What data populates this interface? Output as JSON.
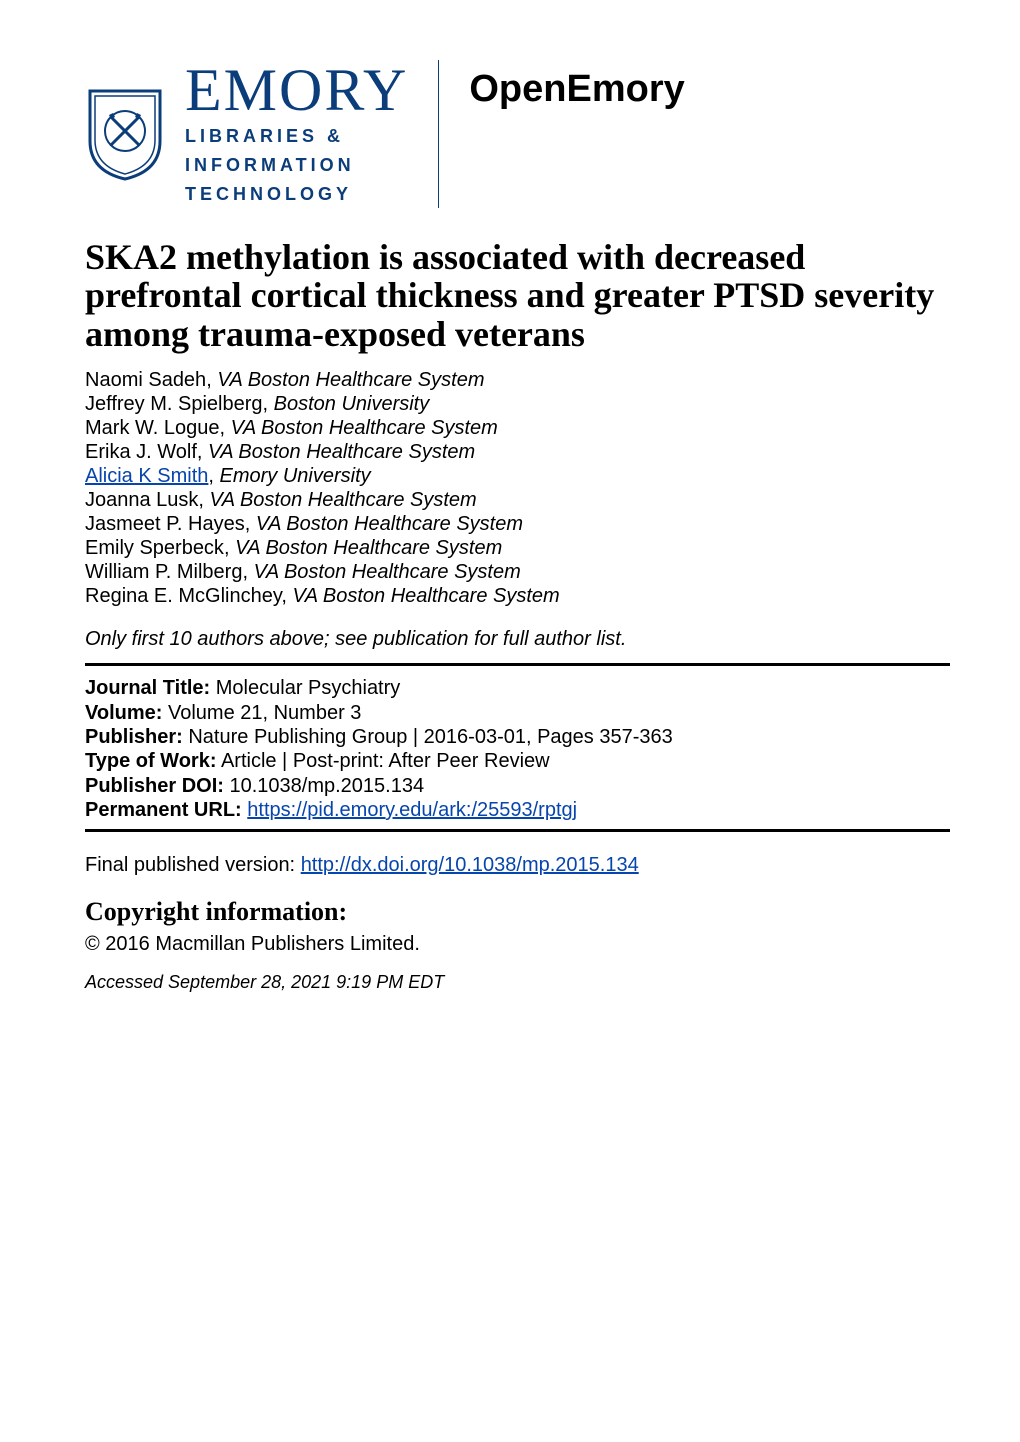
{
  "colors": {
    "brand_blue": "#0b3d7a",
    "link_blue": "#0645ad",
    "text_black": "#000000",
    "background": "#ffffff"
  },
  "typography": {
    "serif_family": "\"Times New Roman\", Times, serif",
    "sans_family": "Arial, Helvetica, sans-serif",
    "article_title_pt": 36,
    "body_pt": 20,
    "emory_title_pt": 60,
    "openemory_pt": 38,
    "copyright_heading_pt": 26
  },
  "header": {
    "emory_title": "EMORY",
    "emory_sub_line1": "LIBRARIES &",
    "emory_sub_line2": "INFORMATION",
    "emory_sub_line3": "TECHNOLOGY",
    "openemory": "OpenEmory"
  },
  "article": {
    "title": "SKA2 methylation is associated with decreased prefrontal cortical thickness and greater PTSD severity among trauma-exposed veterans"
  },
  "authors": [
    {
      "name": "Naomi Sadeh",
      "affiliation": "VA Boston Healthcare System",
      "link": false
    },
    {
      "name": "Jeffrey M. Spielberg",
      "affiliation": "Boston University",
      "link": false
    },
    {
      "name": "Mark W. Logue",
      "affiliation": "VA Boston Healthcare System",
      "link": false
    },
    {
      "name": "Erika J. Wolf",
      "affiliation": "VA Boston Healthcare System",
      "link": false
    },
    {
      "name": "Alicia K Smith",
      "affiliation": "Emory University",
      "link": true
    },
    {
      "name": "Joanna Lusk",
      "affiliation": "VA Boston Healthcare System",
      "link": false
    },
    {
      "name": "Jasmeet P. Hayes",
      "affiliation": "VA Boston Healthcare System",
      "link": false
    },
    {
      "name": "Emily Sperbeck",
      "affiliation": "VA Boston Healthcare System",
      "link": false
    },
    {
      "name": "William P. Milberg",
      "affiliation": "VA Boston Healthcare System",
      "link": false
    },
    {
      "name": "Regina E. McGlinchey",
      "affiliation": "VA Boston Healthcare System",
      "link": false
    }
  ],
  "author_note": "Only first 10 authors above; see publication for full author list.",
  "meta": {
    "journal_label": "Journal Title:",
    "journal_value": " Molecular Psychiatry",
    "volume_label": "Volume:",
    "volume_value": " Volume 21, Number 3",
    "publisher_label": "Publisher:",
    "publisher_value": " Nature Publishing Group | 2016-03-01, Pages 357-363",
    "type_label": "Type of Work:",
    "type_value": " Article | Post-print: After Peer Review",
    "doi_label": "Publisher DOI:",
    "doi_value": " 10.1038/mp.2015.134",
    "permalink_label": "Permanent URL:",
    "permalink_value": "https://pid.emory.edu/ark:/25593/rptgj"
  },
  "final_version": {
    "label": "Final published version: ",
    "url": "http://dx.doi.org/10.1038/mp.2015.134"
  },
  "copyright": {
    "heading": "Copyright information:",
    "text": "© 2016 Macmillan Publishers Limited."
  },
  "accessed": "Accessed September 28, 2021 9:19 PM EDT"
}
